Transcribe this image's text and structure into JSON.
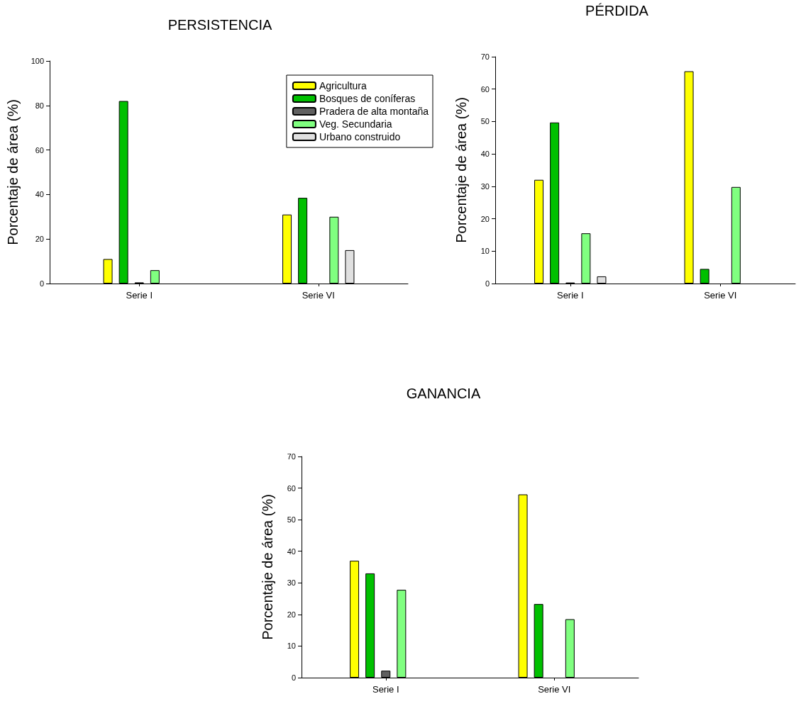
{
  "chart_data": [
    {
      "type": "bar",
      "title": "PERSISTENCIA",
      "ylabel": "Porcentaje de área (%)",
      "categories": [
        "Serie I",
        "Serie VI"
      ],
      "ylim": [
        0,
        100
      ],
      "yticks": [
        0,
        20,
        40,
        60,
        80,
        100
      ],
      "grid": false,
      "legend": "top right",
      "series": [
        {
          "name": "Agricultura",
          "color": "#ffff00",
          "values": [
            11,
            31
          ]
        },
        {
          "name": "Bosques de coníferas",
          "color": "#00c000",
          "values": [
            82,
            38.5
          ]
        },
        {
          "name": "Pradera de alta montaña",
          "color": "#606060",
          "values": [
            0.5,
            null
          ]
        },
        {
          "name": "Veg. Secundaria",
          "color": "#80ff80",
          "values": [
            6,
            30
          ]
        },
        {
          "name": "Urbano construido",
          "color": "#e0e0e0",
          "values": [
            null,
            15
          ]
        }
      ]
    },
    {
      "type": "bar",
      "title": "PÉRDIDA",
      "ylabel": "Porcentaje de área (%)",
      "categories": [
        "Serie I",
        "Serie VI"
      ],
      "ylim": [
        0,
        70
      ],
      "yticks": [
        0,
        10,
        20,
        30,
        40,
        50,
        60,
        70
      ],
      "grid": false,
      "legend": false,
      "series": [
        {
          "color": "#ffff00",
          "values": [
            32,
            65.5
          ]
        },
        {
          "color": "#00c000",
          "values": [
            49.7,
            4.5
          ]
        },
        {
          "color": "#606060",
          "values": [
            0.3,
            null
          ]
        },
        {
          "color": "#80ff80",
          "values": [
            15.5,
            29.8
          ]
        },
        {
          "color": "#e0e0e0",
          "values": [
            2.2,
            null
          ]
        }
      ]
    },
    {
      "type": "bar",
      "title": "GANANCIA",
      "ylabel": "Porcentaje de área (%)",
      "categories": [
        "Serie I",
        "Serie VI"
      ],
      "ylim": [
        0,
        70
      ],
      "yticks": [
        0,
        10,
        20,
        30,
        40,
        50,
        60,
        70
      ],
      "grid": false,
      "legend": false,
      "series": [
        {
          "color": "#ffff00",
          "values": [
            37,
            58
          ]
        },
        {
          "color": "#00c000",
          "values": [
            33,
            23.3
          ]
        },
        {
          "color": "#606060",
          "values": [
            2.2,
            null
          ]
        },
        {
          "color": "#80ff80",
          "values": [
            27.8,
            18.5
          ]
        },
        {
          "color": "#e0e0e0",
          "values": [
            null,
            null
          ]
        }
      ]
    }
  ]
}
